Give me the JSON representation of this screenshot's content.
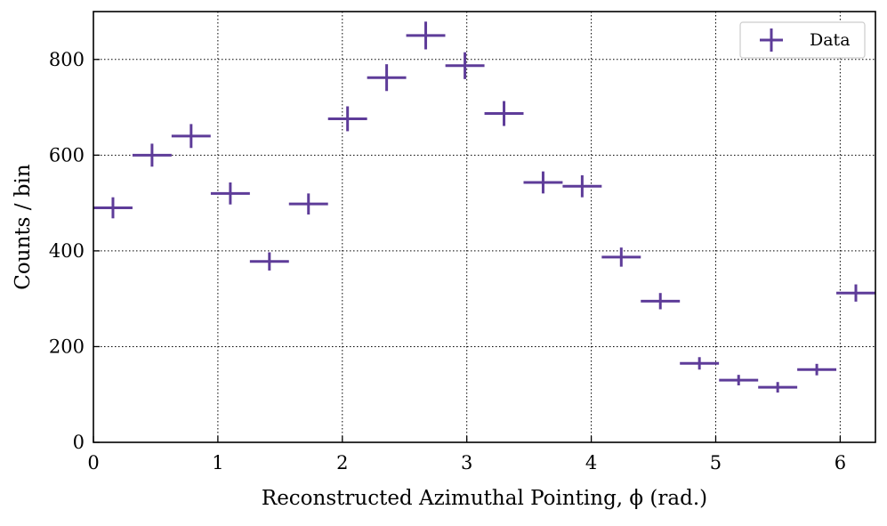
{
  "chart_data": {
    "type": "scatter",
    "xlabel": "Reconstructed Azimuthal Pointing, ϕ (rad.)",
    "ylabel": "Counts / bin",
    "xlim": [
      0,
      6.2832
    ],
    "ylim": [
      0,
      900
    ],
    "xticks": [
      0,
      1,
      2,
      3,
      4,
      5,
      6
    ],
    "yticks": [
      0,
      200,
      400,
      600,
      800
    ],
    "grid": true,
    "legend_position": "top-right",
    "color": "#5e3c99",
    "series": [
      {
        "name": "Data",
        "x": [
          0.157,
          0.471,
          0.785,
          1.1,
          1.414,
          1.728,
          2.042,
          2.356,
          2.67,
          2.985,
          3.299,
          3.613,
          3.927,
          4.241,
          4.555,
          4.869,
          5.184,
          5.498,
          5.812,
          6.126
        ],
        "y": [
          490,
          600,
          640,
          520,
          378,
          498,
          676,
          762,
          850,
          787,
          687,
          543,
          535,
          387,
          295,
          165,
          130,
          115,
          152,
          312
        ],
        "xerr": [
          0.157,
          0.157,
          0.157,
          0.157,
          0.157,
          0.157,
          0.157,
          0.157,
          0.157,
          0.157,
          0.157,
          0.157,
          0.157,
          0.157,
          0.157,
          0.157,
          0.157,
          0.157,
          0.157,
          0.157
        ],
        "yerr": [
          22,
          24,
          25,
          23,
          19,
          22,
          26,
          28,
          29,
          28,
          26,
          23,
          23,
          20,
          17,
          13,
          11,
          11,
          12,
          18
        ]
      }
    ]
  }
}
